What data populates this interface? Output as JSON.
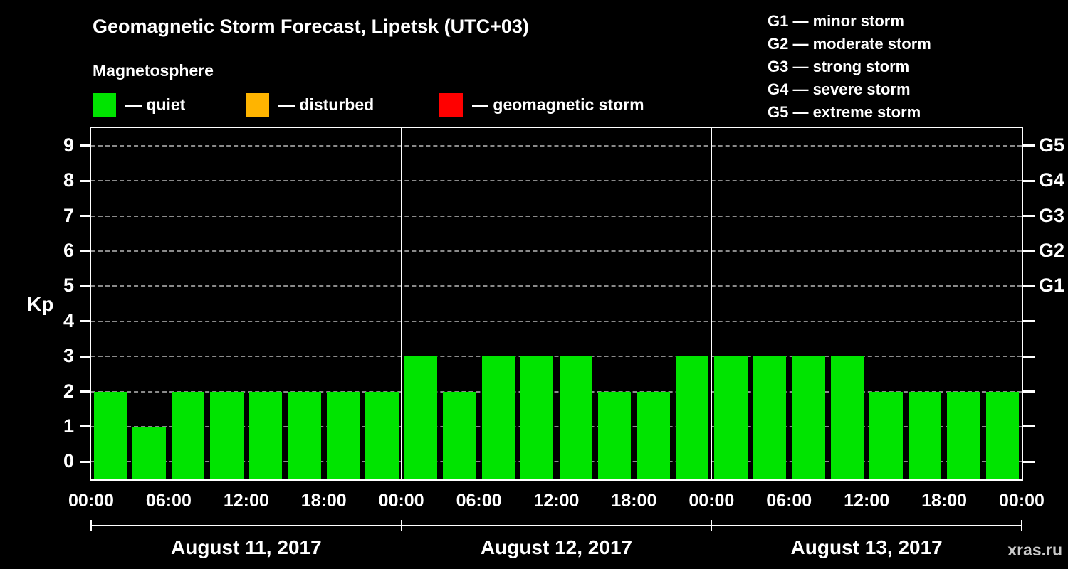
{
  "title": "Geomagnetic Storm Forecast, Lipetsk (UTC+03)",
  "subtitle": "Magnetosphere",
  "legend": {
    "quiet": {
      "label": "— quiet",
      "color": "#00e400"
    },
    "disturbed": {
      "label": "— disturbed",
      "color": "#ffb400"
    },
    "storm": {
      "label": "— geomagnetic storm",
      "color": "#ff0000"
    }
  },
  "storm_scale": [
    "G1 — minor storm",
    "G2 — moderate storm",
    "G3 — strong storm",
    "G4 — severe storm",
    "G5 — extreme storm"
  ],
  "watermark": "xras.ru",
  "chart_data": {
    "type": "bar",
    "title": "Geomagnetic Storm Forecast, Lipetsk (UTC+03)",
    "ylabel": "Kp",
    "ylim": [
      -0.5,
      9.5
    ],
    "y_ticks": [
      0,
      1,
      2,
      3,
      4,
      5,
      6,
      7,
      8,
      9
    ],
    "grid": true,
    "grid_color": "#8a8a8a",
    "right_axis": [
      {
        "label": "G1",
        "kp": 5
      },
      {
        "label": "G2",
        "kp": 6
      },
      {
        "label": "G3",
        "kp": 7
      },
      {
        "label": "G4",
        "kp": 8
      },
      {
        "label": "G5",
        "kp": 9
      }
    ],
    "x_tick_labels": [
      "00:00",
      "06:00",
      "12:00",
      "18:00",
      "00:00",
      "06:00",
      "12:00",
      "18:00",
      "00:00",
      "06:00",
      "12:00",
      "18:00",
      "00:00"
    ],
    "bar_hours": 3,
    "thresholds": {
      "disturbed_min": 4,
      "storm_min": 5
    },
    "days": [
      {
        "label": "August 11, 2017",
        "values": [
          2,
          1,
          2,
          2,
          2,
          2,
          2,
          2
        ]
      },
      {
        "label": "August 12, 2017",
        "values": [
          3,
          2,
          3,
          3,
          3,
          2,
          2,
          3
        ]
      },
      {
        "label": "August 13, 2017",
        "values": [
          3,
          3,
          3,
          3,
          2,
          2,
          2,
          2
        ]
      }
    ]
  }
}
